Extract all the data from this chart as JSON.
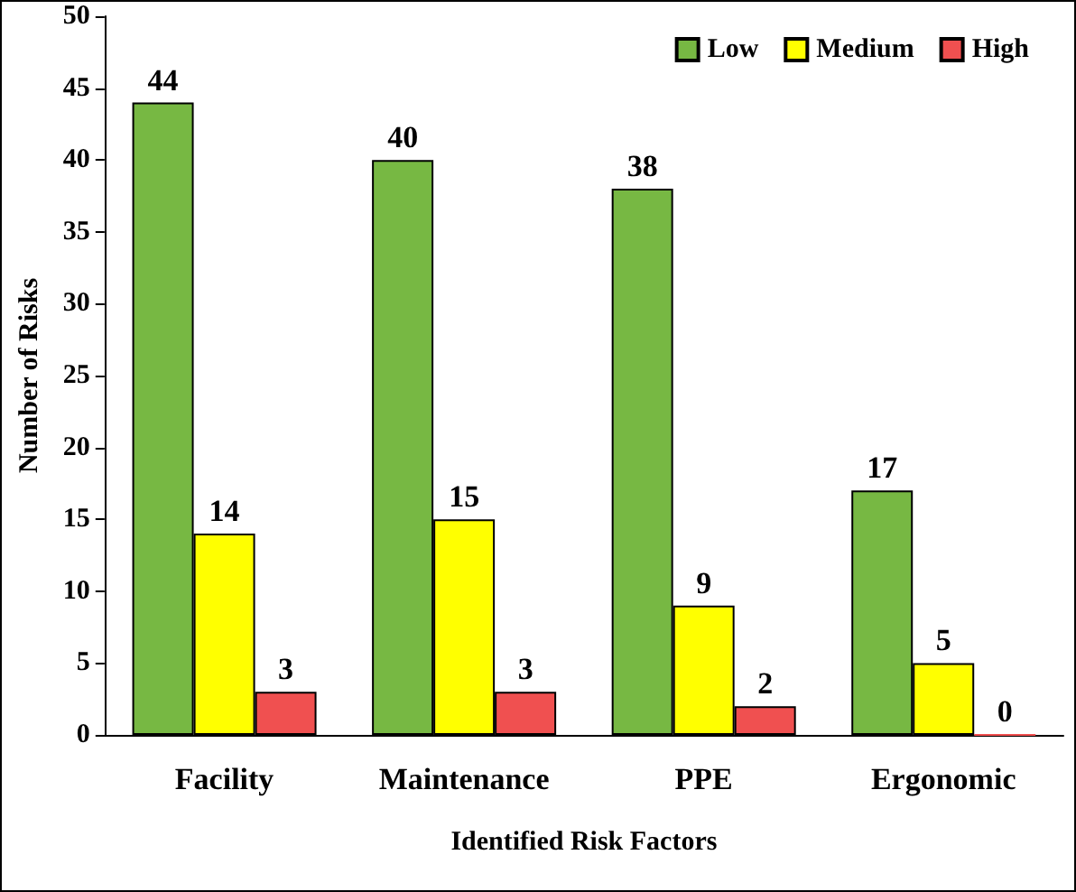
{
  "chart_data": {
    "type": "bar",
    "xlabel": "Identified Risk Factors",
    "ylabel": "Number of Risks",
    "categories": [
      "Facility",
      "Maintenance",
      "PPE",
      "Ergonomic"
    ],
    "series": [
      {
        "name": "Low",
        "color": "#77b843",
        "values": [
          44,
          40,
          38,
          17
        ]
      },
      {
        "name": "Medium",
        "color": "#ffff00",
        "values": [
          14,
          15,
          9,
          5
        ]
      },
      {
        "name": "High",
        "color": "#f05050",
        "values": [
          3,
          3,
          2,
          0
        ]
      }
    ],
    "ylim": [
      0,
      50
    ],
    "yticks": [
      0,
      5,
      10,
      15,
      20,
      25,
      30,
      35,
      40,
      45,
      50
    ],
    "grid": false,
    "legend": "top right",
    "data_labels": true
  }
}
